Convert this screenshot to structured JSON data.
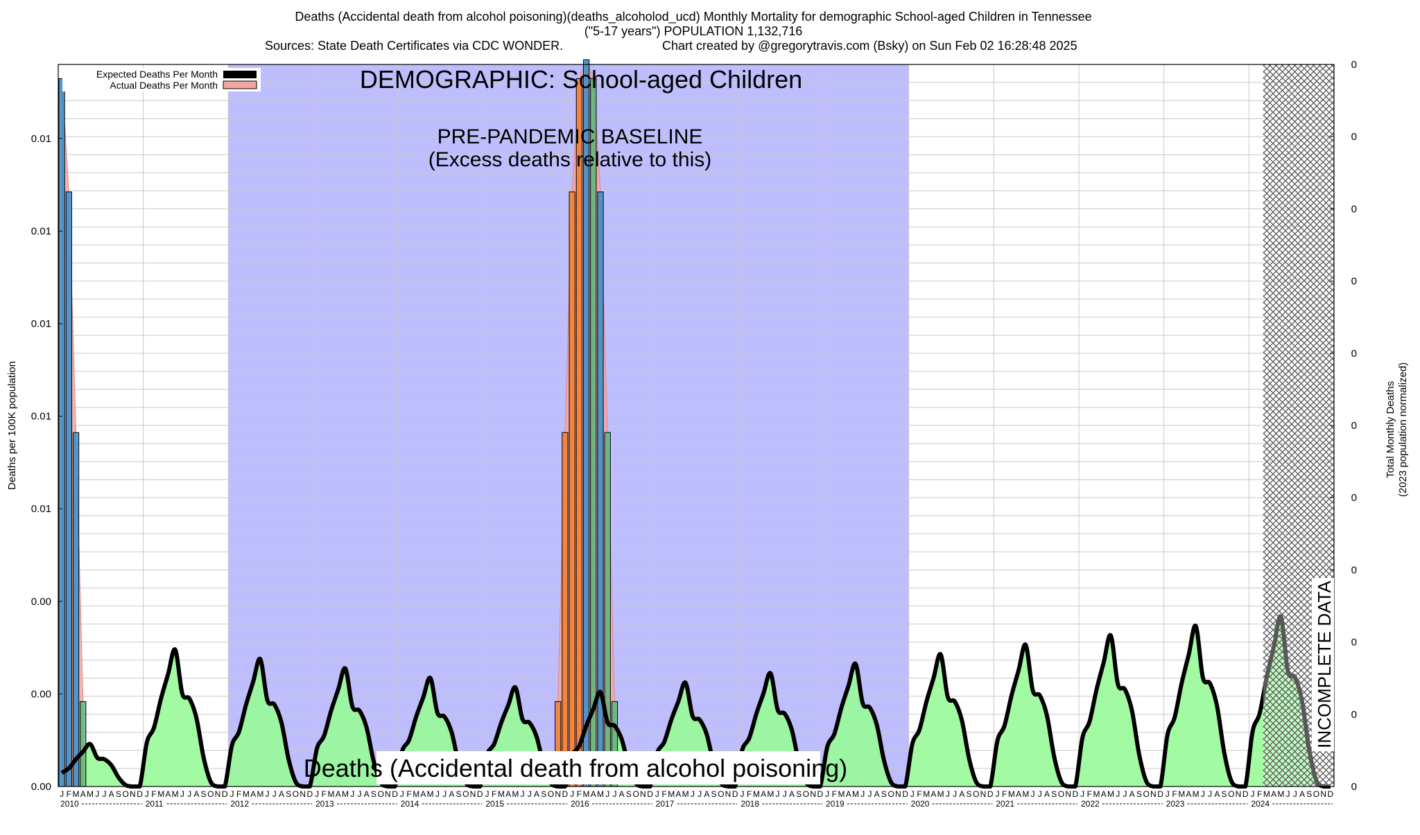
{
  "header": {
    "line1": "Deaths (Accidental death from alcohol poisoning)(deaths_alcoholod_ucd) Monthly Mortality for demographic School-aged Children in Tennessee",
    "line2": "(\"5-17 years\") POPULATION 1,132,716",
    "line3_left": "Sources: State Death Certificates via CDC WONDER.",
    "line3_right": "Chart created by @gregorytravis.com (Bsky) on Sun Feb 02 16:28:48 2025"
  },
  "labels": {
    "demographic": "DEMOGRAPHIC: School-aged Children",
    "baseline_line1": "PRE-PANDEMIC BASELINE",
    "baseline_line2": "(Excess deaths relative to this)",
    "cause": "Deaths (Accidental death from alcohol poisoning)",
    "incomplete": "INCOMPLETE DATA",
    "y_left": "Deaths per 100K population",
    "y_right_line1": "Total Monthly Deaths",
    "y_right_line2": "(2023 population normalized)"
  },
  "legend": {
    "expected": "Expected Deaths Per Month",
    "actual": "Actual Deaths Per Month"
  },
  "colors": {
    "baseline_band": "#bebeff",
    "incomplete_hatch": "#555555",
    "expected_fill": "#98fb98",
    "expected_line": "#000000",
    "actual_fill": "#f4a6a0",
    "bar_blue": "#3a8ec8",
    "bar_orange": "#f57f2a",
    "bar_green": "#5cb87a",
    "grid": "#c8c8c8"
  },
  "chart_data": {
    "type": "bar",
    "x_start": "2010-01",
    "x_end": "2024-12",
    "baseline_period": [
      "2012-01",
      "2019-12"
    ],
    "incomplete_period": [
      "2024-03",
      "2024-12"
    ],
    "year_labels": [
      "2010",
      "2011",
      "2012",
      "2013",
      "2014",
      "2015",
      "2016",
      "2017",
      "2018",
      "2019",
      "2020",
      "2021",
      "2022",
      "2023",
      "2024"
    ],
    "month_letters": [
      "J",
      "F",
      "M",
      "A",
      "M",
      "J",
      "J",
      "A",
      "S",
      "O",
      "N",
      "D"
    ],
    "y_left_ticks": [
      "0.00",
      "0.00",
      "0.00",
      "0.01",
      "0.01",
      "0.01",
      "0.01",
      "0.01"
    ],
    "y_right_ticks": [
      "0",
      "0",
      "0",
      "0",
      "0",
      "0",
      "0",
      "0",
      "0",
      "0",
      "0"
    ],
    "ylim": [
      0,
      0.0153
    ],
    "series": [
      {
        "name": "Actual Deaths Per Month",
        "points": [
          {
            "x": "2010-01",
            "y": 0.015
          },
          {
            "x": "2010-02",
            "y": 0.0126
          },
          {
            "x": "2010-03",
            "y": 0.0075
          },
          {
            "x": "2010-04",
            "y": 0.0018
          },
          {
            "x": "2015-11",
            "y": 0.0018
          },
          {
            "x": "2015-12",
            "y": 0.0075
          },
          {
            "x": "2016-01",
            "y": 0.0126
          },
          {
            "x": "2016-02",
            "y": 0.015
          },
          {
            "x": "2016-03",
            "y": 0.0154
          },
          {
            "x": "2016-04",
            "y": 0.015
          },
          {
            "x": "2016-05",
            "y": 0.0126
          },
          {
            "x": "2016-06",
            "y": 0.0075
          },
          {
            "x": "2016-07",
            "y": 0.0018
          }
        ]
      },
      {
        "name": "Expected Deaths Per Month",
        "cycle": [
          0.0009,
          0.0012,
          0.0018,
          0.0023,
          0.0028,
          0.0019,
          0.0018,
          0.0014,
          0.0006,
          0.0001,
          0.0,
          0.0
        ],
        "years": {
          "2010": 0.0009,
          "2011": 0.0029,
          "2012": 0.0027,
          "2013": 0.0025,
          "2014": 0.0023,
          "2015": 0.0021,
          "2016": 0.002,
          "2017": 0.0022,
          "2018": 0.0024,
          "2019": 0.0026,
          "2020": 0.0028,
          "2021": 0.003,
          "2022": 0.0032,
          "2023": 0.0034,
          "2024": 0.0036
        }
      }
    ]
  }
}
